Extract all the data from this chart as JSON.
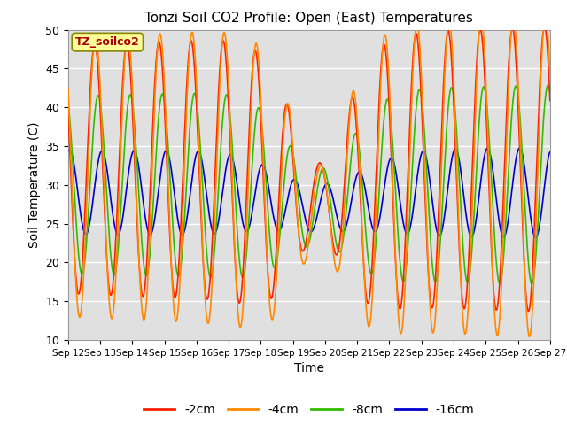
{
  "title": "Tonzi Soil CO2 Profile: Open (East) Temperatures",
  "xlabel": "Time",
  "ylabel": "Soil Temperature (C)",
  "ylim": [
    10,
    50
  ],
  "background_color": "#e0e0e0",
  "legend_label": "TZ_soilco2",
  "legend_bg": "#ffff99",
  "legend_edge": "#888800",
  "series": [
    {
      "label": "-2cm",
      "color": "#ff2200"
    },
    {
      "label": "-4cm",
      "color": "#ff8800"
    },
    {
      "label": "-8cm",
      "color": "#33bb00"
    },
    {
      "label": "-16cm",
      "color": "#0000cc"
    }
  ],
  "xtick_labels": [
    "Sep 12",
    "Sep 13",
    "Sep 14",
    "Sep 15",
    "Sep 16",
    "Sep 17",
    "Sep 18",
    "Sep 19",
    "Sep 20",
    "Sep 21",
    "Sep 22",
    "Sep 23",
    "Sep 24",
    "Sep 25",
    "Sep 26",
    "Sep 27"
  ],
  "ytick_labels": [
    10,
    15,
    20,
    25,
    30,
    35,
    40,
    45,
    50
  ]
}
